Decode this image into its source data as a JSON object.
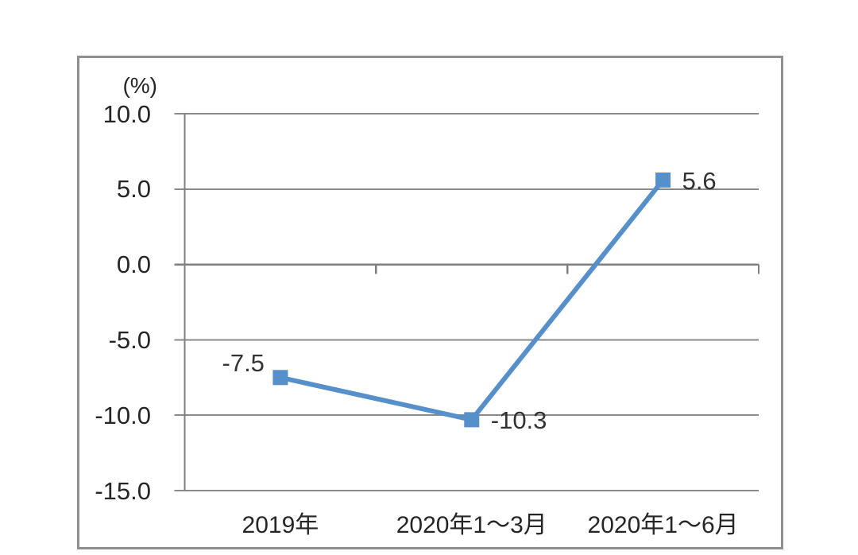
{
  "chart_data": {
    "type": "line",
    "unit_label": "(%)",
    "categories": [
      "2019年",
      "2020年1～3月",
      "2020年1～6月"
    ],
    "series": [
      {
        "values": [
          -7.5,
          -10.3,
          5.6
        ],
        "point_labels": [
          "-7.5",
          "-10.3",
          "5.6"
        ],
        "point_label_side": [
          "left",
          "right",
          "right"
        ],
        "color": "#5590CB",
        "marker": "square"
      }
    ],
    "yticks": [
      10,
      5,
      0,
      -5,
      -10,
      -15
    ],
    "ytick_labels": [
      "10.0",
      "5.0",
      "0.0",
      "-5.0",
      "-10.0",
      "-15.0"
    ],
    "ylim": [
      -15,
      10
    ],
    "grid": true,
    "legend": "none",
    "colors": {
      "line": "#5590CB",
      "grid": "#8a8a8a",
      "axis": "#7f7f7f",
      "frame_border": "#8f8f8f",
      "text": "#262626",
      "background": "#ffffff"
    }
  }
}
